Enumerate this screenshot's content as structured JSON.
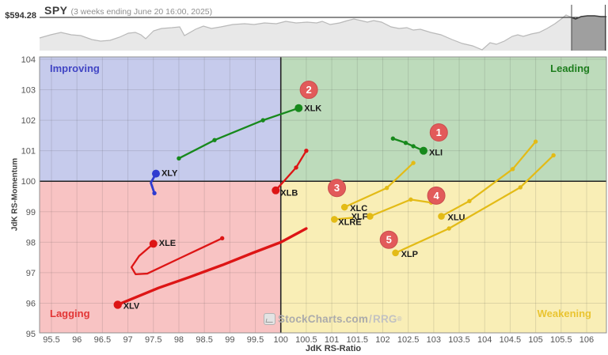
{
  "header": {
    "symbol": "SPY",
    "subtitle": "(3 weeks ending June 20 16:00, 2025)",
    "price_label": "$594.28"
  },
  "watermark": {
    "text": "StockCharts.com",
    "slash": "/",
    "rrg": "RRG",
    "reg": "®"
  },
  "sparkline": {
    "price_line_y": 22,
    "baseline": 64,
    "fill": "#e8e8e8",
    "stroke": "#b9b9b9",
    "highlight_fill": "#9f9f9f",
    "highlight_stroke": "#3c3c3c",
    "highlight_x": [
      722,
      764.5
    ],
    "points": [
      [
        50,
        48
      ],
      [
        64,
        44
      ],
      [
        77,
        41
      ],
      [
        90,
        44
      ],
      [
        102,
        45
      ],
      [
        116,
        50
      ],
      [
        127,
        52
      ],
      [
        139,
        51
      ],
      [
        151,
        47
      ],
      [
        162,
        42
      ],
      [
        171,
        41
      ],
      [
        178,
        44
      ],
      [
        184,
        49
      ],
      [
        194,
        39
      ],
      [
        204,
        36
      ],
      [
        217,
        35
      ],
      [
        227,
        34
      ],
      [
        233,
        45
      ],
      [
        247,
        37
      ],
      [
        257,
        33
      ],
      [
        267,
        36
      ],
      [
        279,
        34
      ],
      [
        294,
        31
      ],
      [
        309,
        30
      ],
      [
        321,
        31
      ],
      [
        334,
        29
      ],
      [
        349,
        30
      ],
      [
        361,
        27
      ],
      [
        374,
        29
      ],
      [
        388,
        28
      ],
      [
        400,
        29
      ],
      [
        407,
        27
      ],
      [
        417,
        31
      ],
      [
        429,
        29
      ],
      [
        439,
        26
      ],
      [
        447,
        24
      ],
      [
        456,
        26
      ],
      [
        464,
        28
      ],
      [
        472,
        26
      ],
      [
        482,
        28
      ],
      [
        494,
        34
      ],
      [
        504,
        36
      ],
      [
        514,
        35
      ],
      [
        522,
        38
      ],
      [
        531,
        37
      ],
      [
        544,
        41
      ],
      [
        557,
        44
      ],
      [
        571,
        50
      ],
      [
        584,
        55
      ],
      [
        597,
        58
      ],
      [
        609,
        63
      ],
      [
        619,
        54
      ],
      [
        627,
        56
      ],
      [
        637,
        52
      ],
      [
        647,
        46
      ],
      [
        654,
        44
      ],
      [
        661,
        46
      ],
      [
        671,
        43
      ],
      [
        681,
        41
      ],
      [
        691,
        36
      ],
      [
        701,
        30
      ],
      [
        709,
        24
      ],
      [
        715,
        19
      ],
      [
        722,
        22
      ],
      [
        727,
        24
      ],
      [
        734,
        21
      ],
      [
        742,
        20
      ],
      [
        751,
        20
      ],
      [
        759,
        21
      ],
      [
        766,
        21
      ]
    ]
  },
  "chart_data": {
    "type": "scatter",
    "title": "Relative Rotation Graph (RRG) - S&P sector ETFs vs SPY",
    "xlabel": "JdK RS-Ratio",
    "ylabel": "JdK RS-Momentum",
    "xlim": [
      95.27,
      106.4
    ],
    "ylim": [
      95.03,
      104.08
    ],
    "grid": true,
    "x_ticks": [
      95.5,
      96,
      96.5,
      97,
      97.5,
      98,
      98.5,
      99,
      99.5,
      100,
      100.5,
      101,
      101.5,
      102,
      102.5,
      103,
      103.5,
      104,
      104.5,
      105,
      105.5,
      106
    ],
    "y_ticks": [
      95,
      96,
      97,
      98,
      99,
      100,
      101,
      102,
      103,
      104
    ],
    "quadrants": [
      {
        "name": "Improving",
        "color": "#c6cbec",
        "label_color": "#4145c4",
        "pos": "top-left"
      },
      {
        "name": "Leading",
        "color": "#bddbbb",
        "label_color": "#1e7e1e",
        "pos": "top-right"
      },
      {
        "name": "Lagging",
        "color": "#f8c3c3",
        "label_color": "#e23535",
        "pos": "bottom-left"
      },
      {
        "name": "Weakening",
        "color": "#f9eeb6",
        "label_color": "#eac431",
        "pos": "bottom-right"
      }
    ],
    "badge_color": "#e25a5a",
    "badges": [
      {
        "label": "1",
        "x": 103.1,
        "y": 101.6
      },
      {
        "label": "2",
        "x": 100.55,
        "y": 103.0
      },
      {
        "label": "3",
        "x": 101.1,
        "y": 99.78
      },
      {
        "label": "4",
        "x": 103.05,
        "y": 99.53
      },
      {
        "label": "5",
        "x": 102.12,
        "y": 98.08
      }
    ],
    "series": [
      {
        "name": "XLK",
        "color": "#17891c",
        "width": 2.3,
        "end_r": 5,
        "dot_idx": [
          0,
          1,
          2
        ],
        "label_dx": 7,
        "label_dy": 1,
        "points": [
          [
            98.0,
            100.75
          ],
          [
            98.7,
            101.35
          ],
          [
            99.65,
            102.0
          ],
          [
            100.35,
            102.4
          ]
        ]
      },
      {
        "name": "XLI",
        "color": "#17891c",
        "width": 2.3,
        "end_r": 5,
        "dot_idx": [
          0,
          1,
          2
        ],
        "label_dx": 7,
        "label_dy": 3,
        "points": [
          [
            102.2,
            101.4
          ],
          [
            102.45,
            101.26
          ],
          [
            102.6,
            101.15
          ],
          [
            102.8,
            101.0
          ]
        ]
      },
      {
        "name": "XLY",
        "color": "#2f3bd0",
        "width": 2.8,
        "end_r": 5,
        "dot_idx": [
          0
        ],
        "label_dx": 7,
        "label_dy": 0,
        "points": [
          [
            97.52,
            99.61
          ],
          [
            97.45,
            99.95
          ],
          [
            97.55,
            100.25
          ]
        ]
      },
      {
        "name": "XLB",
        "color": "#dd1515",
        "width": 2.3,
        "end_r": 5,
        "dot_idx": [
          0,
          1
        ],
        "label_dx": 6,
        "label_dy": 4,
        "points": [
          [
            100.5,
            101.0
          ],
          [
            100.3,
            100.45
          ],
          [
            99.9,
            99.7
          ]
        ]
      },
      {
        "name": "XLC",
        "color": "#e3bb16",
        "width": 2.2,
        "end_r": 4.3,
        "dot_idx": [
          0,
          1
        ],
        "label_dx": 7,
        "label_dy": 2,
        "points": [
          [
            102.6,
            100.6
          ],
          [
            102.08,
            99.78
          ],
          [
            101.25,
            99.15
          ]
        ]
      },
      {
        "name": "XLF",
        "color": "#e3bb16",
        "width": 2.2,
        "end_r": 4.3,
        "dot_idx": [
          0,
          1
        ],
        "label_dx": -3,
        "label_dy": 1,
        "label_anchor": "end",
        "points": [
          [
            102.95,
            99.3
          ],
          [
            102.55,
            99.4
          ],
          [
            101.75,
            98.85
          ]
        ]
      },
      {
        "name": "XLRE",
        "color": "#e3bb16",
        "width": 2.2,
        "end_r": 4.3,
        "dot_idx": [],
        "label_dx": 5,
        "label_dy": 4,
        "points": [
          [
            101.4,
            98.8
          ],
          [
            101.05,
            98.75
          ]
        ]
      },
      {
        "name": "XLU",
        "color": "#e3bb16",
        "width": 2.2,
        "end_r": 4.3,
        "dot_idx": [
          0,
          1,
          2
        ],
        "label_dx": 8,
        "label_dy": 2,
        "points": [
          [
            105.0,
            101.3
          ],
          [
            104.55,
            100.4
          ],
          [
            103.7,
            99.35
          ],
          [
            103.15,
            98.85
          ]
        ]
      },
      {
        "name": "XLP",
        "color": "#e3bb16",
        "width": 2.2,
        "end_r": 4.3,
        "dot_idx": [
          0,
          1,
          2
        ],
        "label_dx": 7,
        "label_dy": 2,
        "points": [
          [
            105.35,
            100.85
          ],
          [
            104.7,
            99.8
          ],
          [
            103.3,
            98.45
          ],
          [
            102.25,
            97.65
          ]
        ]
      },
      {
        "name": "XLE",
        "color": "#dd1515",
        "width": 2.3,
        "end_r": 5,
        "dot_idx": [
          0
        ],
        "label_dx": 7,
        "label_dy": 0,
        "points": [
          [
            98.85,
            98.13
          ],
          [
            98.05,
            97.5
          ],
          [
            97.38,
            96.97
          ],
          [
            97.15,
            96.95
          ],
          [
            97.07,
            97.18
          ],
          [
            97.22,
            97.55
          ],
          [
            97.5,
            97.95
          ]
        ]
      },
      {
        "name": "XLV",
        "color": "#dd1515",
        "width": 3.4,
        "end_r": 5.2,
        "dot_idx": [],
        "label_dx": 7,
        "label_dy": 2,
        "points": [
          [
            100.5,
            98.45
          ],
          [
            100.0,
            98.0
          ],
          [
            99.45,
            97.65
          ],
          [
            98.85,
            97.25
          ],
          [
            98.2,
            96.85
          ],
          [
            97.6,
            96.5
          ],
          [
            96.8,
            95.95
          ]
        ]
      }
    ]
  }
}
